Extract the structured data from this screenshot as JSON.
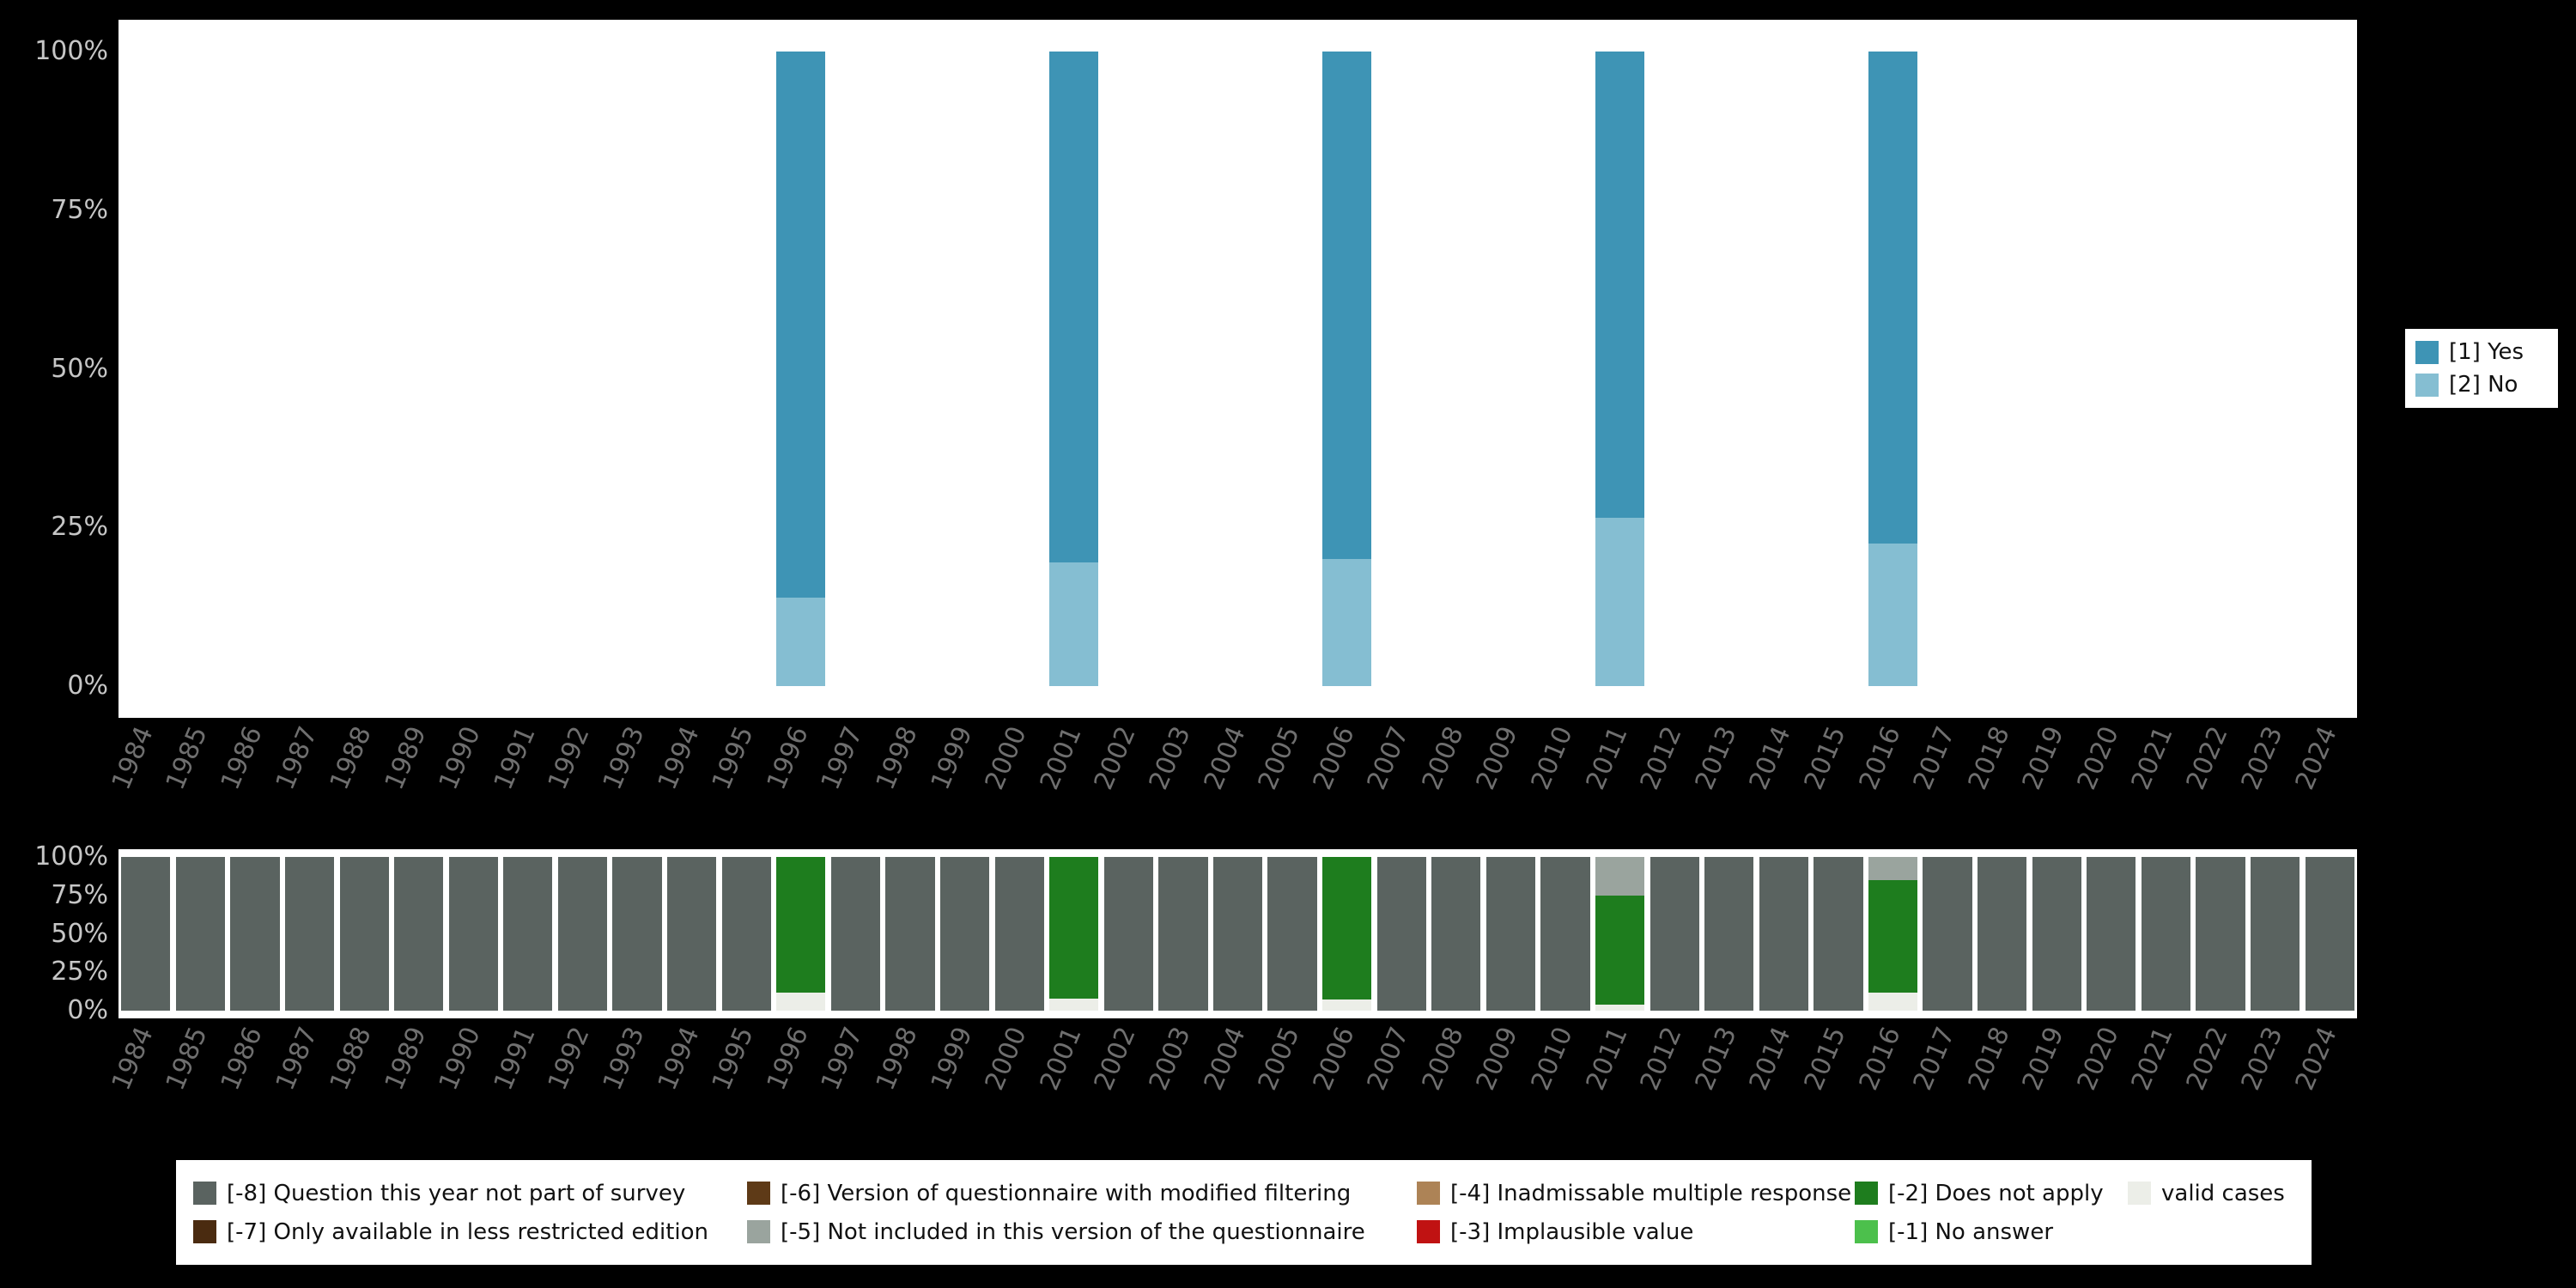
{
  "figure": {
    "background": "#000000",
    "panel_background": "#ffffff"
  },
  "legend_top": {
    "items": [
      {
        "label": "[1] Yes",
        "color": "#3e94b5"
      },
      {
        "label": "[2] No",
        "color": "#85bed2"
      }
    ]
  },
  "legend_bottom": {
    "items": [
      {
        "label": "[-8] Question this year not part of survey",
        "color": "#5a6360"
      },
      {
        "label": "[-7] Only available in less restricted edition",
        "color": "#4a2b10"
      },
      {
        "label": "[-6] Version of questionnaire with modified filtering",
        "color": "#5e3a17"
      },
      {
        "label": "[-5] Not included in this version of the questionnaire",
        "color": "#9aa49e"
      },
      {
        "label": "[-4] Inadmissable multiple response",
        "color": "#ad8356"
      },
      {
        "label": "[-3] Implausible value",
        "color": "#c01212"
      },
      {
        "label": "[-2] Does not apply",
        "color": "#1e7d1e"
      },
      {
        "label": "[-1] No answer",
        "color": "#4cc04c"
      },
      {
        "label": "valid cases",
        "color": "#eceee8"
      }
    ]
  },
  "chart_data": [
    {
      "id": "response-distribution",
      "type": "bar",
      "stacking": "percent",
      "legend_position": "right",
      "legend_entries": [
        "[1] Yes",
        "[2] No"
      ],
      "categories": [
        "1984",
        "1985",
        "1986",
        "1987",
        "1988",
        "1989",
        "1990",
        "1991",
        "1992",
        "1993",
        "1994",
        "1995",
        "1996",
        "1997",
        "1998",
        "1999",
        "2000",
        "2001",
        "2002",
        "2003",
        "2004",
        "2005",
        "2006",
        "2007",
        "2008",
        "2009",
        "2010",
        "2011",
        "2012",
        "2013",
        "2014",
        "2015",
        "2016",
        "2017",
        "2018",
        "2019",
        "2020",
        "2021",
        "2022",
        "2023",
        "2024"
      ],
      "yticks": [
        "0%",
        "25%",
        "50%",
        "75%",
        "100%"
      ],
      "ylim": [
        0,
        100
      ],
      "series_colors": {
        "[1] Yes": "#3e94b5",
        "[2] No": "#85bed2"
      },
      "bars": {
        "1996": [
          {
            "series": "[2] No",
            "value": 14
          },
          {
            "series": "[1] Yes",
            "value": 86
          }
        ],
        "2001": [
          {
            "series": "[2] No",
            "value": 19.5
          },
          {
            "series": "[1] Yes",
            "value": 80.5
          }
        ],
        "2006": [
          {
            "series": "[2] No",
            "value": 20
          },
          {
            "series": "[1] Yes",
            "value": 80
          }
        ],
        "2011": [
          {
            "series": "[2] No",
            "value": 26.5
          },
          {
            "series": "[1] Yes",
            "value": 73.5
          }
        ],
        "2016": [
          {
            "series": "[2] No",
            "value": 22.5
          },
          {
            "series": "[1] Yes",
            "value": 77.5
          }
        ]
      }
    },
    {
      "id": "missing-values",
      "type": "bar",
      "stacking": "percent",
      "categories": [
        "1984",
        "1985",
        "1986",
        "1987",
        "1988",
        "1989",
        "1990",
        "1991",
        "1992",
        "1993",
        "1994",
        "1995",
        "1996",
        "1997",
        "1998",
        "1999",
        "2000",
        "2001",
        "2002",
        "2003",
        "2004",
        "2005",
        "2006",
        "2007",
        "2008",
        "2009",
        "2010",
        "2011",
        "2012",
        "2013",
        "2014",
        "2015",
        "2016",
        "2017",
        "2018",
        "2019",
        "2020",
        "2021",
        "2022",
        "2023",
        "2024"
      ],
      "yticks": [
        "0%",
        "25%",
        "50%",
        "75%",
        "100%"
      ],
      "ylim": [
        0,
        100
      ],
      "series_colors": {
        "[-8] Question this year not part of survey": "#5a6360",
        "[-5] Not included in this version of the questionnaire": "#9aa49e",
        "[-2] Does not apply": "#1e7d1e",
        "valid cases": "#eceee8"
      },
      "default_bar": [
        {
          "series": "[-8] Question this year not part of survey",
          "value": 100
        }
      ],
      "bars": {
        "1996": [
          {
            "series": "valid cases",
            "value": 12
          },
          {
            "series": "[-2] Does not apply",
            "value": 88
          }
        ],
        "2001": [
          {
            "series": "valid cases",
            "value": 8
          },
          {
            "series": "[-2] Does not apply",
            "value": 92
          }
        ],
        "2006": [
          {
            "series": "valid cases",
            "value": 7
          },
          {
            "series": "[-2] Does not apply",
            "value": 93
          }
        ],
        "2011": [
          {
            "series": "valid cases",
            "value": 4
          },
          {
            "series": "[-2] Does not apply",
            "value": 71
          },
          {
            "series": "[-5] Not included in this version of the questionnaire",
            "value": 25
          }
        ],
        "2016": [
          {
            "series": "valid cases",
            "value": 12
          },
          {
            "series": "[-2] Does not apply",
            "value": 73
          },
          {
            "series": "[-5] Not included in this version of the questionnaire",
            "value": 15
          }
        ]
      }
    }
  ]
}
